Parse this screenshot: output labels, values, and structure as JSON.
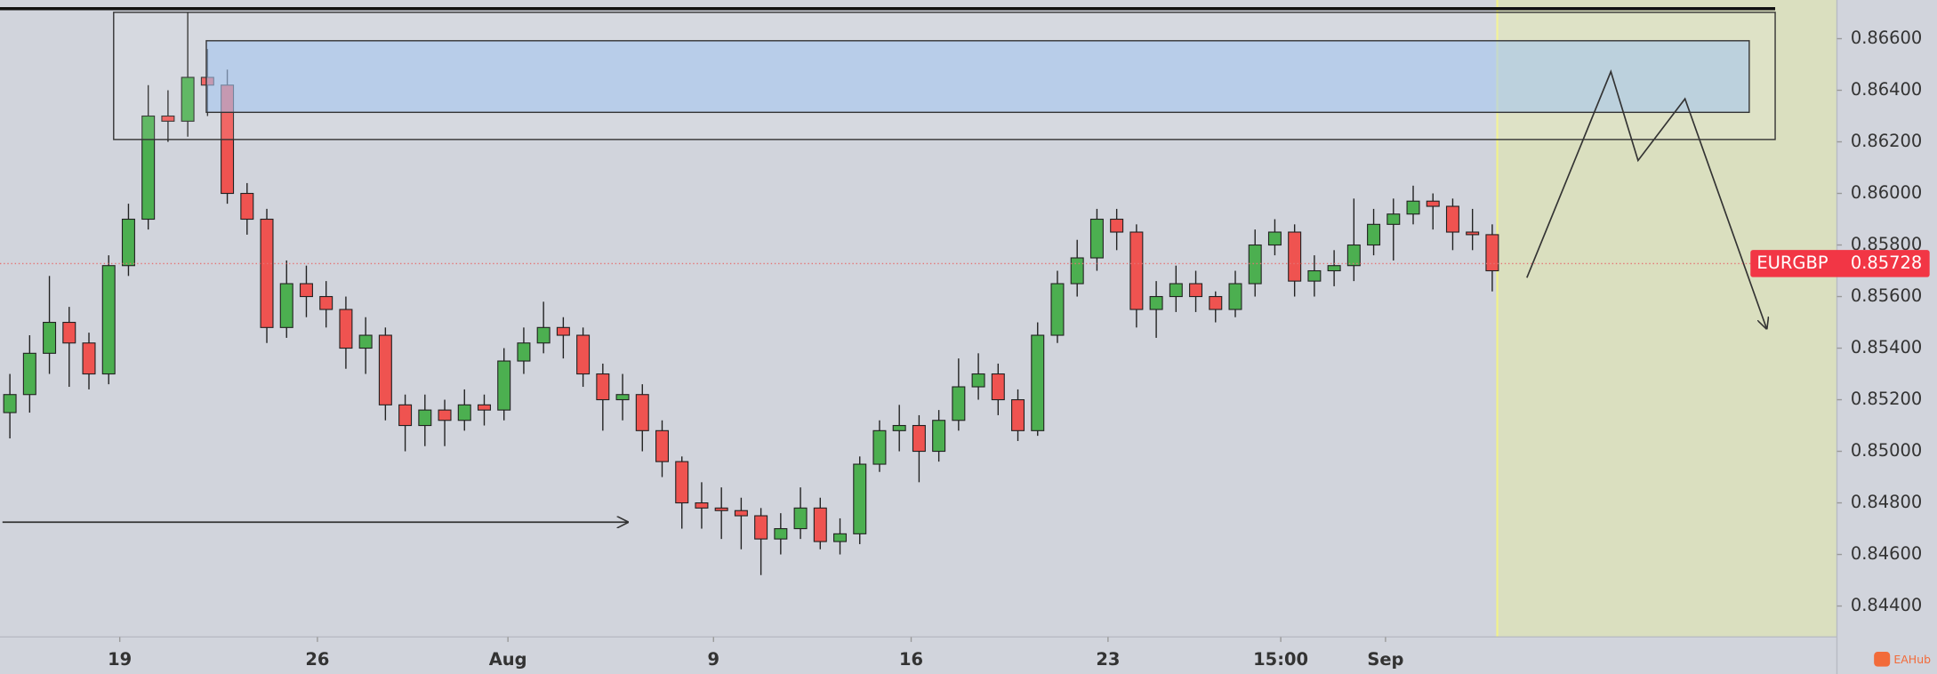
{
  "chart_data": {
    "type": "candlestick",
    "symbol": "EURGBP",
    "last_price": 0.85728,
    "up_color": "#4caf50",
    "down_color": "#ef5350",
    "grid": false,
    "open": [
      0.8515,
      0.8522,
      0.8538,
      0.855,
      0.8542,
      0.853,
      0.8572,
      0.859,
      0.863,
      0.8628,
      0.8645,
      0.8642,
      0.86,
      0.859,
      0.8548,
      0.8565,
      0.856,
      0.8555,
      0.854,
      0.8545,
      0.8518,
      0.851,
      0.8516,
      0.8512,
      0.8518,
      0.8516,
      0.8535,
      0.8542,
      0.8548,
      0.8545,
      0.853,
      0.852,
      0.8522,
      0.8508,
      0.8496,
      0.848,
      0.8478,
      0.8477,
      0.8475,
      0.8466,
      0.847,
      0.8478,
      0.8465,
      0.8468,
      0.8495,
      0.8508,
      0.851,
      0.85,
      0.8512,
      0.8525,
      0.853,
      0.852,
      0.8508,
      0.8545,
      0.8565,
      0.8575,
      0.859,
      0.8585,
      0.8555,
      0.856,
      0.8565,
      0.856,
      0.8555,
      0.8565,
      0.858,
      0.8585,
      0.8566,
      0.857,
      0.8572,
      0.858,
      0.8588,
      0.8592,
      0.8597,
      0.8595,
      0.8585,
      0.8584
    ],
    "high": [
      0.853,
      0.8545,
      0.8568,
      0.8556,
      0.8546,
      0.8576,
      0.8596,
      0.8642,
      0.864,
      0.867,
      0.8656,
      0.8648,
      0.8604,
      0.8594,
      0.8574,
      0.8572,
      0.8566,
      0.856,
      0.8552,
      0.8548,
      0.8522,
      0.8522,
      0.852,
      0.8524,
      0.8522,
      0.854,
      0.8548,
      0.8558,
      0.8552,
      0.8548,
      0.8534,
      0.853,
      0.8526,
      0.8512,
      0.8498,
      0.8488,
      0.8486,
      0.8482,
      0.8478,
      0.8476,
      0.8486,
      0.8482,
      0.8474,
      0.8498,
      0.8512,
      0.8518,
      0.8514,
      0.8516,
      0.8536,
      0.8538,
      0.8534,
      0.8524,
      0.855,
      0.857,
      0.8582,
      0.8594,
      0.8594,
      0.8588,
      0.8566,
      0.8572,
      0.857,
      0.8562,
      0.857,
      0.8586,
      0.859,
      0.8588,
      0.8576,
      0.8578,
      0.8598,
      0.8594,
      0.8598,
      0.8603,
      0.86,
      0.8598,
      0.8594,
      0.8588
    ],
    "low": [
      0.8505,
      0.8515,
      0.853,
      0.8525,
      0.8524,
      0.8526,
      0.8568,
      0.8586,
      0.862,
      0.8622,
      0.863,
      0.8596,
      0.8584,
      0.8542,
      0.8544,
      0.8552,
      0.8548,
      0.8532,
      0.853,
      0.8512,
      0.85,
      0.8502,
      0.8502,
      0.8508,
      0.851,
      0.8512,
      0.853,
      0.8538,
      0.8536,
      0.8525,
      0.8508,
      0.8512,
      0.85,
      0.849,
      0.847,
      0.847,
      0.8466,
      0.8462,
      0.8452,
      0.846,
      0.8466,
      0.8462,
      0.846,
      0.8464,
      0.8492,
      0.85,
      0.8488,
      0.8496,
      0.8508,
      0.852,
      0.8514,
      0.8504,
      0.8506,
      0.8542,
      0.856,
      0.857,
      0.8578,
      0.8548,
      0.8544,
      0.8554,
      0.8554,
      0.855,
      0.8552,
      0.856,
      0.8576,
      0.856,
      0.856,
      0.8564,
      0.8566,
      0.8576,
      0.8574,
      0.8588,
      0.8586,
      0.8578,
      0.8578,
      0.8562
    ],
    "close": [
      0.8522,
      0.8538,
      0.855,
      0.8542,
      0.853,
      0.8572,
      0.859,
      0.863,
      0.8628,
      0.8645,
      0.8642,
      0.86,
      0.859,
      0.8548,
      0.8565,
      0.856,
      0.8555,
      0.854,
      0.8545,
      0.8518,
      0.851,
      0.8516,
      0.8512,
      0.8518,
      0.8516,
      0.8535,
      0.8542,
      0.8548,
      0.8545,
      0.853,
      0.852,
      0.8522,
      0.8508,
      0.8496,
      0.848,
      0.8478,
      0.8477,
      0.8475,
      0.8466,
      0.847,
      0.8478,
      0.8465,
      0.8468,
      0.8495,
      0.8508,
      0.851,
      0.85,
      0.8512,
      0.8525,
      0.853,
      0.852,
      0.8508,
      0.8545,
      0.8565,
      0.8575,
      0.859,
      0.8585,
      0.8555,
      0.856,
      0.8565,
      0.856,
      0.8555,
      0.8565,
      0.858,
      0.8585,
      0.8566,
      0.857,
      0.8572,
      0.858,
      0.8588,
      0.8592,
      0.8597,
      0.8595,
      0.8585,
      0.8584,
      0.857
    ],
    "xlim": [
      -0.5,
      92.44
    ],
    "xticks": [
      {
        "value": 5.56,
        "label": "19"
      },
      {
        "value": 15.56,
        "label": "26"
      },
      {
        "value": 25.2,
        "label": "Aug"
      },
      {
        "value": 35.6,
        "label": "9"
      },
      {
        "value": 45.6,
        "label": "16"
      },
      {
        "value": 55.56,
        "label": "23"
      },
      {
        "value": 64.3,
        "label": "15:00"
      },
      {
        "value": 69.6,
        "label": "Sep"
      }
    ],
    "ylim": [
      0.8428,
      0.8675
    ],
    "yticks": [
      {
        "value": 0.844,
        "label": "0.84400"
      },
      {
        "value": 0.846,
        "label": "0.84600"
      },
      {
        "value": 0.848,
        "label": "0.84800"
      },
      {
        "value": 0.85,
        "label": "0.85000"
      },
      {
        "value": 0.852,
        "label": "0.85200"
      },
      {
        "value": 0.854,
        "label": "0.85400"
      },
      {
        "value": 0.856,
        "label": "0.85600"
      },
      {
        "value": 0.858,
        "label": "0.85800"
      },
      {
        "value": 0.86,
        "label": "0.86000"
      },
      {
        "value": 0.862,
        "label": "0.86200"
      },
      {
        "value": 0.864,
        "label": "0.86400"
      },
      {
        "value": 0.866,
        "label": "0.86600"
      }
    ],
    "watermark": "EAHub"
  }
}
